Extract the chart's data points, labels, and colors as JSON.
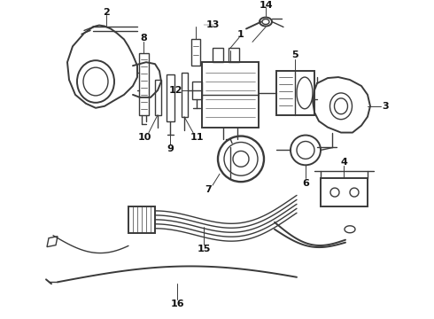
{
  "background_color": "#ffffff",
  "line_color": "#3a3a3a",
  "text_color": "#111111",
  "fig_width": 4.9,
  "fig_height": 3.6,
  "dpi": 100,
  "label_font": 7.5
}
